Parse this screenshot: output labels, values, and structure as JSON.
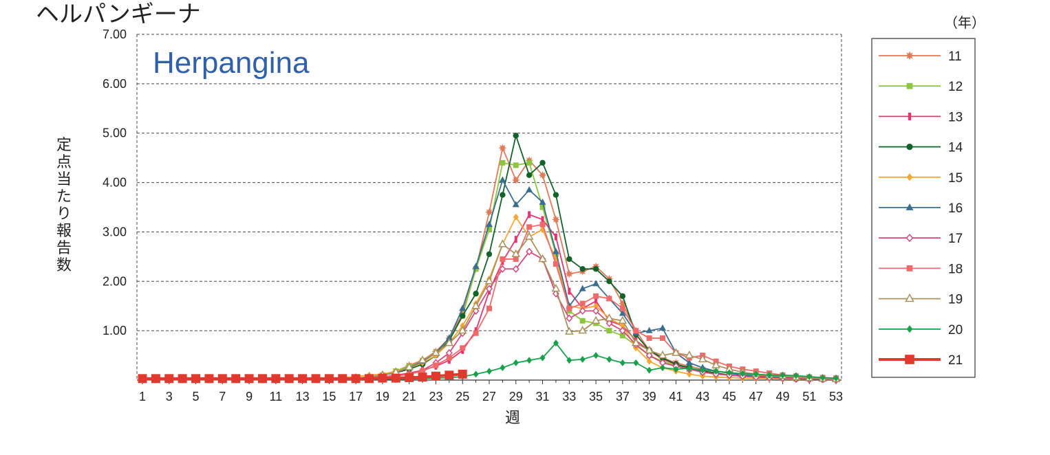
{
  "title_jp": "ヘルパンギーナ",
  "colors": {
    "plot_background": "#ffffff",
    "grid": "#444444"
  },
  "chart_data": {
    "type": "line",
    "title": "Herpangina",
    "xlabel": "週",
    "ylabel": "定点当たり報告数",
    "legend_title": "（年）",
    "legend_position": "right",
    "grid": "dashed horizontal",
    "xlim": [
      1,
      53
    ],
    "ylim": [
      0,
      7
    ],
    "x_ticks": [
      "1",
      "3",
      "5",
      "7",
      "9",
      "11",
      "13",
      "15",
      "17",
      "19",
      "21",
      "23",
      "25",
      "27",
      "29",
      "31",
      "33",
      "35",
      "37",
      "39",
      "41",
      "43",
      "45",
      "47",
      "49",
      "51",
      "53"
    ],
    "y_ticks": [
      "1.00",
      "2.00",
      "3.00",
      "4.00",
      "5.00",
      "6.00",
      "7.00"
    ],
    "series": [
      {
        "name": "11",
        "color": "#e07a58",
        "marker": "star",
        "values": [
          0.02,
          0.02,
          0.02,
          0.02,
          0.02,
          0.02,
          0.02,
          0.02,
          0.02,
          0.02,
          0.02,
          0.02,
          0.02,
          0.02,
          0.02,
          0.03,
          0.04,
          0.06,
          0.1,
          0.18,
          0.3,
          0.4,
          0.58,
          0.85,
          1.35,
          2.25,
          3.4,
          4.7,
          4.05,
          4.45,
          4.15,
          3.25,
          2.15,
          2.2,
          2.3,
          2.05,
          1.55,
          1.0,
          0.6,
          0.45,
          0.35,
          0.28,
          0.22,
          0.18,
          0.15,
          0.12,
          0.1,
          0.08,
          0.06,
          0.05,
          0.04,
          0.03,
          0.03
        ]
      },
      {
        "name": "12",
        "color": "#8cc63f",
        "marker": "square",
        "values": [
          0.02,
          0.02,
          0.02,
          0.02,
          0.02,
          0.02,
          0.02,
          0.02,
          0.02,
          0.02,
          0.02,
          0.02,
          0.02,
          0.02,
          0.02,
          0.03,
          0.04,
          0.06,
          0.1,
          0.18,
          0.28,
          0.38,
          0.55,
          0.8,
          1.3,
          2.25,
          3.05,
          4.4,
          4.35,
          4.4,
          3.5,
          2.55,
          1.4,
          1.2,
          1.15,
          1.0,
          0.9,
          0.7,
          0.5,
          0.38,
          0.3,
          0.22,
          0.16,
          0.12,
          0.1,
          0.08,
          0.06,
          0.05,
          0.04,
          0.03,
          0.03,
          0.02,
          0.02
        ]
      },
      {
        "name": "13",
        "color": "#e5356d",
        "marker": "bar",
        "values": [
          0.01,
          0.01,
          0.01,
          0.01,
          0.01,
          0.01,
          0.01,
          0.01,
          0.01,
          0.01,
          0.01,
          0.01,
          0.01,
          0.02,
          0.02,
          0.02,
          0.03,
          0.04,
          0.06,
          0.1,
          0.14,
          0.2,
          0.28,
          0.4,
          0.6,
          1.0,
          1.8,
          2.4,
          2.85,
          3.35,
          3.25,
          2.9,
          1.8,
          1.45,
          1.6,
          1.2,
          1.1,
          0.8,
          0.6,
          0.42,
          0.32,
          0.24,
          0.18,
          0.14,
          0.1,
          0.08,
          0.06,
          0.05,
          0.04,
          0.03,
          0.02,
          0.02,
          0.01
        ]
      },
      {
        "name": "14",
        "color": "#12622a",
        "marker": "circle",
        "values": [
          0.02,
          0.02,
          0.02,
          0.02,
          0.02,
          0.02,
          0.02,
          0.02,
          0.02,
          0.02,
          0.02,
          0.02,
          0.02,
          0.02,
          0.02,
          0.03,
          0.04,
          0.06,
          0.1,
          0.15,
          0.22,
          0.32,
          0.5,
          0.8,
          1.3,
          1.75,
          2.55,
          3.75,
          4.95,
          4.15,
          4.4,
          3.75,
          2.45,
          2.25,
          2.25,
          2.0,
          1.7,
          0.92,
          0.6,
          0.45,
          0.32,
          0.25,
          0.18,
          0.14,
          0.1,
          0.08,
          0.06,
          0.05,
          0.04,
          0.03,
          0.02,
          0.02,
          0.01
        ]
      },
      {
        "name": "15",
        "color": "#f5a732",
        "marker": "diamond",
        "values": [
          0.03,
          0.03,
          0.03,
          0.03,
          0.03,
          0.03,
          0.03,
          0.03,
          0.03,
          0.03,
          0.03,
          0.03,
          0.03,
          0.04,
          0.04,
          0.05,
          0.07,
          0.1,
          0.12,
          0.18,
          0.25,
          0.35,
          0.5,
          0.75,
          1.1,
          1.55,
          2.05,
          2.75,
          3.3,
          2.9,
          3.05,
          2.45,
          1.5,
          1.45,
          1.5,
          1.25,
          1.1,
          0.65,
          0.38,
          0.25,
          0.18,
          0.12,
          0.08,
          0.06,
          0.05,
          0.04,
          0.03,
          0.03,
          0.02,
          0.02,
          0.02,
          0.02,
          0.01
        ]
      },
      {
        "name": "16",
        "color": "#3a6e8f",
        "marker": "triangle",
        "values": [
          0.02,
          0.02,
          0.02,
          0.02,
          0.02,
          0.02,
          0.02,
          0.02,
          0.02,
          0.02,
          0.02,
          0.02,
          0.02,
          0.02,
          0.02,
          0.03,
          0.04,
          0.06,
          0.1,
          0.15,
          0.25,
          0.38,
          0.55,
          0.85,
          1.45,
          2.3,
          3.15,
          4.05,
          3.55,
          3.85,
          3.6,
          2.6,
          1.5,
          1.85,
          1.95,
          1.65,
          1.35,
          0.95,
          1.0,
          1.05,
          0.55,
          0.35,
          0.25,
          0.18,
          0.14,
          0.1,
          0.08,
          0.06,
          0.05,
          0.04,
          0.03,
          0.02,
          0.02
        ]
      },
      {
        "name": "17",
        "color": "#d24b7f",
        "marker": "diamond-open",
        "values": [
          0.01,
          0.01,
          0.01,
          0.01,
          0.01,
          0.01,
          0.01,
          0.01,
          0.01,
          0.01,
          0.01,
          0.01,
          0.01,
          0.01,
          0.02,
          0.02,
          0.03,
          0.04,
          0.06,
          0.08,
          0.12,
          0.2,
          0.35,
          0.55,
          0.95,
          1.4,
          1.85,
          2.25,
          2.25,
          2.6,
          2.45,
          1.75,
          1.25,
          1.4,
          1.4,
          1.15,
          1.0,
          0.72,
          0.5,
          0.35,
          0.28,
          0.22,
          0.16,
          0.12,
          0.1,
          0.08,
          0.06,
          0.05,
          0.04,
          0.03,
          0.02,
          0.02,
          0.01
        ]
      },
      {
        "name": "18",
        "color": "#ef6b6b",
        "marker": "square",
        "values": [
          0.01,
          0.01,
          0.01,
          0.01,
          0.01,
          0.01,
          0.01,
          0.01,
          0.01,
          0.01,
          0.01,
          0.01,
          0.01,
          0.01,
          0.02,
          0.02,
          0.03,
          0.04,
          0.06,
          0.08,
          0.12,
          0.18,
          0.3,
          0.45,
          0.65,
          0.95,
          1.45,
          2.45,
          2.45,
          3.1,
          3.15,
          2.35,
          1.45,
          1.55,
          1.7,
          1.65,
          1.45,
          1.0,
          0.85,
          0.85,
          0.55,
          0.45,
          0.5,
          0.38,
          0.28,
          0.22,
          0.18,
          0.14,
          0.1,
          0.08,
          0.06,
          0.05,
          0.04
        ]
      },
      {
        "name": "19",
        "color": "#a8915a",
        "marker": "triangle-open",
        "values": [
          0.02,
          0.02,
          0.02,
          0.02,
          0.02,
          0.02,
          0.02,
          0.02,
          0.02,
          0.02,
          0.02,
          0.02,
          0.02,
          0.02,
          0.02,
          0.03,
          0.04,
          0.06,
          0.1,
          0.16,
          0.26,
          0.4,
          0.55,
          0.75,
          1.0,
          1.5,
          2.0,
          2.75,
          2.55,
          2.9,
          2.45,
          1.85,
          0.98,
          1.0,
          1.2,
          1.25,
          1.2,
          0.75,
          0.6,
          0.5,
          0.55,
          0.5,
          0.42,
          0.3,
          0.22,
          0.16,
          0.12,
          0.1,
          0.08,
          0.06,
          0.04,
          0.03,
          0.02
        ]
      },
      {
        "name": "20",
        "color": "#18a14b",
        "marker": "diamond",
        "values": [
          0.01,
          0.01,
          0.01,
          0.01,
          0.01,
          0.01,
          0.01,
          0.01,
          0.01,
          0.01,
          0.01,
          0.01,
          0.01,
          0.01,
          0.01,
          0.01,
          0.01,
          0.01,
          0.02,
          0.02,
          0.02,
          0.03,
          0.04,
          0.05,
          0.07,
          0.12,
          0.18,
          0.25,
          0.35,
          0.4,
          0.45,
          0.75,
          0.4,
          0.42,
          0.5,
          0.42,
          0.35,
          0.35,
          0.2,
          0.25,
          0.22,
          0.24,
          0.2,
          0.18,
          0.15,
          0.13,
          0.12,
          0.1,
          0.1,
          0.09,
          0.07,
          0.05,
          0.04
        ]
      },
      {
        "name": "21",
        "color": "#e03a2f",
        "marker": "square-big",
        "values": [
          0.03,
          0.03,
          0.03,
          0.03,
          0.03,
          0.03,
          0.03,
          0.03,
          0.03,
          0.03,
          0.03,
          0.03,
          0.03,
          0.03,
          0.03,
          0.03,
          0.03,
          0.03,
          0.04,
          0.04,
          0.05,
          0.06,
          0.08,
          0.1,
          0.12
        ]
      }
    ]
  }
}
